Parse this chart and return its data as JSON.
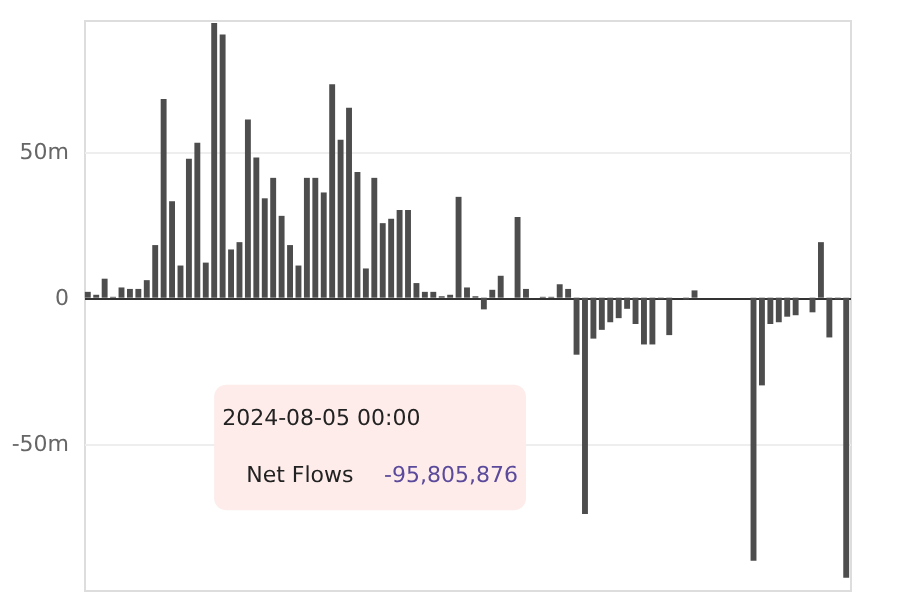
{
  "chart_data": {
    "type": "bar",
    "categories": [
      null,
      null,
      null,
      null,
      null,
      null,
      null,
      null,
      null,
      null,
      null,
      null,
      null,
      null,
      null,
      null,
      null,
      null,
      null,
      null,
      null,
      null,
      null,
      null,
      null,
      null,
      null,
      null,
      null,
      null,
      null,
      null,
      null,
      null,
      null,
      null,
      null,
      null,
      null,
      null,
      null,
      null,
      null,
      null,
      null,
      null,
      null,
      null,
      null,
      null,
      null,
      null,
      null,
      null,
      null,
      null,
      null,
      null,
      null,
      null,
      null,
      null,
      null,
      null,
      null,
      null,
      null,
      null,
      null,
      null,
      null,
      null,
      null,
      null,
      null,
      null,
      null,
      null,
      null,
      null,
      null,
      null,
      null,
      null,
      null,
      null,
      null,
      null,
      null,
      null,
      null
    ],
    "values": [
      2,
      1,
      6.5,
      0.3,
      3.5,
      3,
      3,
      6,
      18,
      68,
      33,
      11,
      47.5,
      53,
      12,
      94,
      90,
      16.5,
      19,
      61,
      48,
      34,
      41,
      28,
      18,
      11,
      41,
      41,
      36,
      73,
      54,
      65,
      43,
      10,
      41,
      25.5,
      27,
      30,
      30,
      5,
      2,
      2,
      0.5,
      1,
      34.5,
      3.5,
      0.5,
      -4,
      2.7,
      7.5,
      0,
      27.6,
      3,
      0,
      0.3,
      0.3,
      4.6,
      3,
      -19.5,
      -74,
      -14,
      -11,
      -8.4,
      -7,
      -3.8,
      -9,
      -16,
      -16,
      -0.5,
      -12.8,
      0,
      -0.6,
      2.5,
      null,
      null,
      null,
      null,
      null,
      null,
      -90,
      -30,
      -9,
      -8.4,
      -6.5,
      -6,
      0,
      -5,
      19,
      -13.6,
      -0.6,
      -95.8
    ],
    "color": "#4d4d4d",
    "ylim": [
      -100,
      95
    ],
    "yticks": [
      {
        "value": -50,
        "label": "-50m"
      },
      0,
      {
        "value": 50,
        "label": "50m"
      }
    ],
    "grid": "y",
    "tick_labels": "y",
    "annotations": [
      "2024-08-05 00:00",
      "Net Flows",
      "-95,805,876"
    ]
  }
}
